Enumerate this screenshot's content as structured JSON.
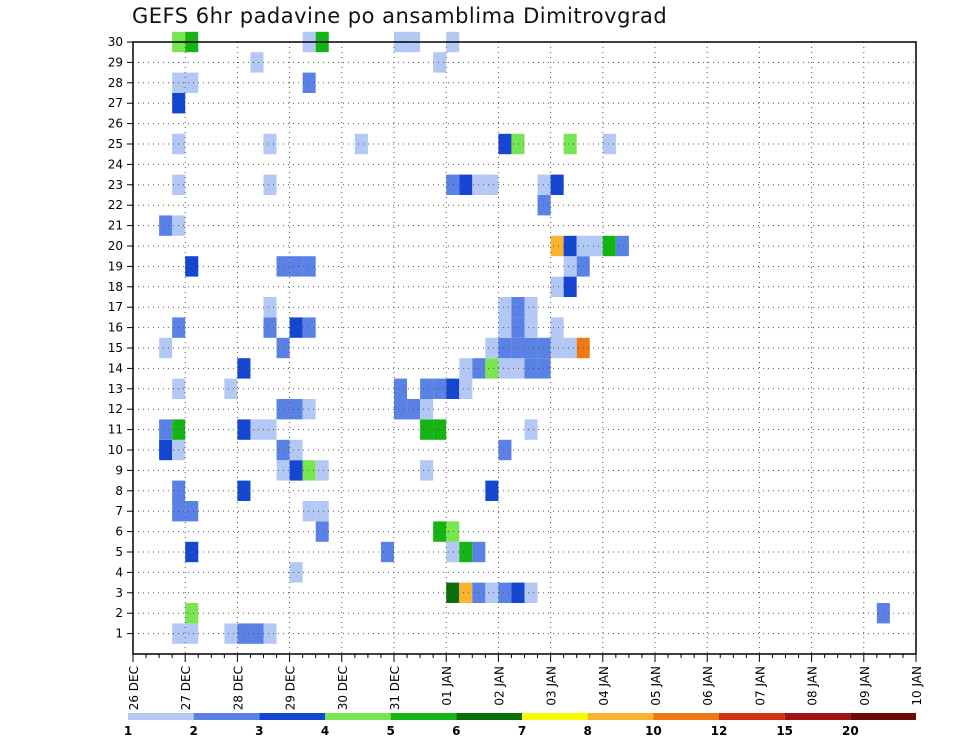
{
  "chart_data": {
    "type": "heatmap",
    "title": "GEFS 6hr padavine po ansamblima Dimitrovgrad",
    "x_ticks": [
      "26 DEC",
      "27 DEC",
      "28 DEC",
      "29 DEC",
      "30 DEC",
      "31 DEC",
      "01 JAN",
      "02 JAN",
      "03 JAN",
      "04 JAN",
      "05 JAN",
      "06 JAN",
      "07 JAN",
      "08 JAN",
      "09 JAN",
      "10 JAN"
    ],
    "y_ticks": [
      "1",
      "2",
      "3",
      "4",
      "5",
      "6",
      "7",
      "8",
      "9",
      "10",
      "11",
      "12",
      "13",
      "14",
      "15",
      "16",
      "17",
      "18",
      "19",
      "20",
      "21",
      "22",
      "23",
      "24",
      "25",
      "26",
      "27",
      "28",
      "29",
      "30"
    ],
    "xlim": [
      0,
      60
    ],
    "ylim": [
      0,
      30
    ],
    "grid": true,
    "colorbar": {
      "labels": [
        "1",
        "2",
        "3",
        "4",
        "5",
        "6",
        "7",
        "8",
        "10",
        "12",
        "15",
        "20"
      ],
      "colors": [
        "#b4c8f5",
        "#5a82e6",
        "#1446d2",
        "#78e650",
        "#14b414",
        "#0a6e0a",
        "#fafa00",
        "#fab432",
        "#f07814",
        "#d23214",
        "#a01414",
        "#6e0a0a"
      ]
    },
    "cells": [
      [
        3,
        1,
        "#b4c8f5"
      ],
      [
        4,
        1,
        "#b4c8f5"
      ],
      [
        7,
        1,
        "#b4c8f5"
      ],
      [
        8,
        1,
        "#5a82e6"
      ],
      [
        9,
        1,
        "#5a82e6"
      ],
      [
        10,
        1,
        "#b4c8f5"
      ],
      [
        4,
        2,
        "#78e650"
      ],
      [
        57,
        2,
        "#5a82e6"
      ],
      [
        24,
        3,
        "#0a6e0a"
      ],
      [
        25,
        3,
        "#fab432"
      ],
      [
        26,
        3,
        "#5a82e6"
      ],
      [
        27,
        3,
        "#b4c8f5"
      ],
      [
        28,
        3,
        "#5a82e6"
      ],
      [
        29,
        3,
        "#1446d2"
      ],
      [
        30,
        3,
        "#b4c8f5"
      ],
      [
        12,
        4,
        "#b4c8f5"
      ],
      [
        4,
        5,
        "#1446d2"
      ],
      [
        19,
        5,
        "#5a82e6"
      ],
      [
        24,
        5,
        "#b4c8f5"
      ],
      [
        25,
        5,
        "#14b414"
      ],
      [
        26,
        5,
        "#5a82e6"
      ],
      [
        14,
        6,
        "#5a82e6"
      ],
      [
        23,
        6,
        "#14b414"
      ],
      [
        24,
        6,
        "#78e650"
      ],
      [
        3,
        7,
        "#5a82e6"
      ],
      [
        4,
        7,
        "#5a82e6"
      ],
      [
        13,
        7,
        "#b4c8f5"
      ],
      [
        14,
        7,
        "#b4c8f5"
      ],
      [
        3,
        8,
        "#5a82e6"
      ],
      [
        8,
        8,
        "#1446d2"
      ],
      [
        27,
        8,
        "#1446d2"
      ],
      [
        11,
        9,
        "#b4c8f5"
      ],
      [
        12,
        9,
        "#1446d2"
      ],
      [
        13,
        9,
        "#78e650"
      ],
      [
        14,
        9,
        "#b4c8f5"
      ],
      [
        22,
        9,
        "#b4c8f5"
      ],
      [
        2,
        10,
        "#1446d2"
      ],
      [
        3,
        10,
        "#b4c8f5"
      ],
      [
        11,
        10,
        "#5a82e6"
      ],
      [
        12,
        10,
        "#b4c8f5"
      ],
      [
        28,
        10,
        "#5a82e6"
      ],
      [
        2,
        11,
        "#5a82e6"
      ],
      [
        3,
        11,
        "#14b414"
      ],
      [
        8,
        11,
        "#1446d2"
      ],
      [
        9,
        11,
        "#b4c8f5"
      ],
      [
        10,
        11,
        "#b4c8f5"
      ],
      [
        22,
        11,
        "#14b414"
      ],
      [
        23,
        11,
        "#14b414"
      ],
      [
        30,
        11,
        "#b4c8f5"
      ],
      [
        11,
        12,
        "#5a82e6"
      ],
      [
        12,
        12,
        "#5a82e6"
      ],
      [
        13,
        12,
        "#b4c8f5"
      ],
      [
        20,
        12,
        "#5a82e6"
      ],
      [
        21,
        12,
        "#5a82e6"
      ],
      [
        22,
        12,
        "#b4c8f5"
      ],
      [
        3,
        13,
        "#b4c8f5"
      ],
      [
        7,
        13,
        "#b4c8f5"
      ],
      [
        20,
        13,
        "#5a82e6"
      ],
      [
        22,
        13,
        "#5a82e6"
      ],
      [
        23,
        13,
        "#5a82e6"
      ],
      [
        24,
        13,
        "#1446d2"
      ],
      [
        25,
        13,
        "#b4c8f5"
      ],
      [
        8,
        14,
        "#1446d2"
      ],
      [
        25,
        14,
        "#b4c8f5"
      ],
      [
        26,
        14,
        "#5a82e6"
      ],
      [
        27,
        14,
        "#78e650"
      ],
      [
        28,
        14,
        "#b4c8f5"
      ],
      [
        29,
        14,
        "#b4c8f5"
      ],
      [
        30,
        14,
        "#5a82e6"
      ],
      [
        31,
        14,
        "#5a82e6"
      ],
      [
        2,
        15,
        "#b4c8f5"
      ],
      [
        11,
        15,
        "#5a82e6"
      ],
      [
        27,
        15,
        "#b4c8f5"
      ],
      [
        28,
        15,
        "#5a82e6"
      ],
      [
        29,
        15,
        "#5a82e6"
      ],
      [
        30,
        15,
        "#5a82e6"
      ],
      [
        31,
        15,
        "#5a82e6"
      ],
      [
        32,
        15,
        "#b4c8f5"
      ],
      [
        33,
        15,
        "#b4c8f5"
      ],
      [
        34,
        15,
        "#f07814"
      ],
      [
        3,
        16,
        "#5a82e6"
      ],
      [
        10,
        16,
        "#5a82e6"
      ],
      [
        12,
        16,
        "#1446d2"
      ],
      [
        13,
        16,
        "#5a82e6"
      ],
      [
        28,
        16,
        "#b4c8f5"
      ],
      [
        29,
        16,
        "#5a82e6"
      ],
      [
        30,
        16,
        "#b4c8f5"
      ],
      [
        32,
        16,
        "#b4c8f5"
      ],
      [
        10,
        17,
        "#b4c8f5"
      ],
      [
        28,
        17,
        "#b4c8f5"
      ],
      [
        29,
        17,
        "#5a82e6"
      ],
      [
        30,
        17,
        "#b4c8f5"
      ],
      [
        32,
        18,
        "#b4c8f5"
      ],
      [
        33,
        18,
        "#1446d2"
      ],
      [
        4,
        19,
        "#1446d2"
      ],
      [
        11,
        19,
        "#5a82e6"
      ],
      [
        12,
        19,
        "#5a82e6"
      ],
      [
        13,
        19,
        "#5a82e6"
      ],
      [
        33,
        19,
        "#b4c8f5"
      ],
      [
        34,
        19,
        "#5a82e6"
      ],
      [
        32,
        20,
        "#fab432"
      ],
      [
        33,
        20,
        "#1446d2"
      ],
      [
        34,
        20,
        "#b4c8f5"
      ],
      [
        35,
        20,
        "#b4c8f5"
      ],
      [
        36,
        20,
        "#14b414"
      ],
      [
        37,
        20,
        "#5a82e6"
      ],
      [
        2,
        21,
        "#5a82e6"
      ],
      [
        3,
        21,
        "#b4c8f5"
      ],
      [
        31,
        22,
        "#5a82e6"
      ],
      [
        3,
        23,
        "#b4c8f5"
      ],
      [
        10,
        23,
        "#b4c8f5"
      ],
      [
        24,
        23,
        "#5a82e6"
      ],
      [
        25,
        23,
        "#1446d2"
      ],
      [
        26,
        23,
        "#b4c8f5"
      ],
      [
        27,
        23,
        "#b4c8f5"
      ],
      [
        31,
        23,
        "#b4c8f5"
      ],
      [
        32,
        23,
        "#1446d2"
      ],
      [
        3,
        25,
        "#b4c8f5"
      ],
      [
        10,
        25,
        "#b4c8f5"
      ],
      [
        17,
        25,
        "#b4c8f5"
      ],
      [
        28,
        25,
        "#1446d2"
      ],
      [
        29,
        25,
        "#78e650"
      ],
      [
        33,
        25,
        "#78e650"
      ],
      [
        36,
        25,
        "#b4c8f5"
      ],
      [
        3,
        27,
        "#1446d2"
      ],
      [
        3,
        28,
        "#b4c8f5"
      ],
      [
        4,
        28,
        "#b4c8f5"
      ],
      [
        13,
        28,
        "#5a82e6"
      ],
      [
        9,
        29,
        "#b4c8f5"
      ],
      [
        23,
        29,
        "#b4c8f5"
      ],
      [
        3,
        30,
        "#78e650"
      ],
      [
        4,
        30,
        "#14b414"
      ],
      [
        13,
        30,
        "#b4c8f5"
      ],
      [
        14,
        30,
        "#14b414"
      ],
      [
        20,
        30,
        "#b4c8f5"
      ],
      [
        21,
        30,
        "#b4c8f5"
      ],
      [
        24,
        30,
        "#b4c8f5"
      ]
    ]
  }
}
